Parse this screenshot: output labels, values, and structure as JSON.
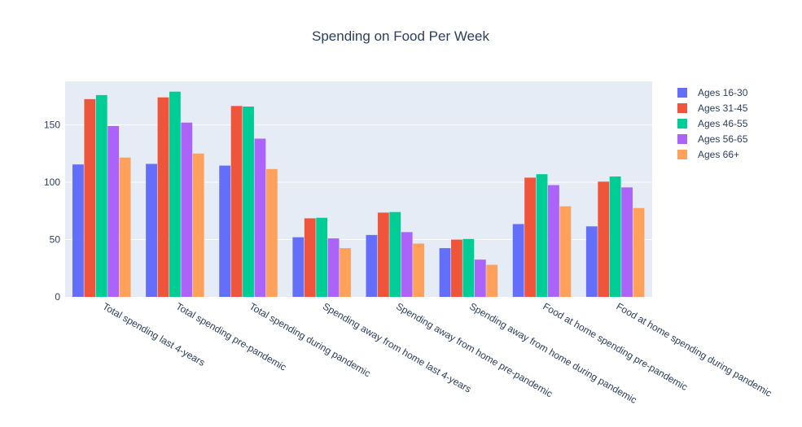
{
  "chart_data": {
    "type": "bar",
    "title": "Spending on Food Per Week",
    "xlabel": "",
    "ylabel": "",
    "ylim": [
      0,
      188
    ],
    "yticks": [
      0,
      50,
      100,
      150
    ],
    "grid": true,
    "legend_position": "top-right",
    "categories": [
      "Total spending last 4-years",
      "Total spending pre-pandemic",
      "Total spending during pandemic",
      "Spending away from home last 4-years",
      "Spending away from home pre-pandemic",
      "Spending away from home during pandemic",
      "Food at home spending pre-pandemic",
      "Food at home spending during pandemic"
    ],
    "series": [
      {
        "name": "Ages 16-30",
        "color": "#636efa",
        "values": [
          115.5,
          116,
          114.5,
          52,
          54,
          42.5,
          63.5,
          61.5
        ]
      },
      {
        "name": "Ages 31-45",
        "color": "#ef553b",
        "values": [
          172.5,
          174,
          166.5,
          68.5,
          73.5,
          50,
          104,
          100.5
        ]
      },
      {
        "name": "Ages 46-55",
        "color": "#00cc96",
        "values": [
          176,
          179,
          166,
          69,
          74,
          50.5,
          107,
          105
        ]
      },
      {
        "name": "Ages 56-65",
        "color": "#ab63fa",
        "values": [
          149,
          152,
          138,
          51,
          56.5,
          32.5,
          97.5,
          95.5
        ]
      },
      {
        "name": "Ages 66+",
        "color": "#ffa15a",
        "values": [
          121.5,
          125,
          111.5,
          42.5,
          46.5,
          28,
          79,
          77.5
        ]
      }
    ]
  }
}
